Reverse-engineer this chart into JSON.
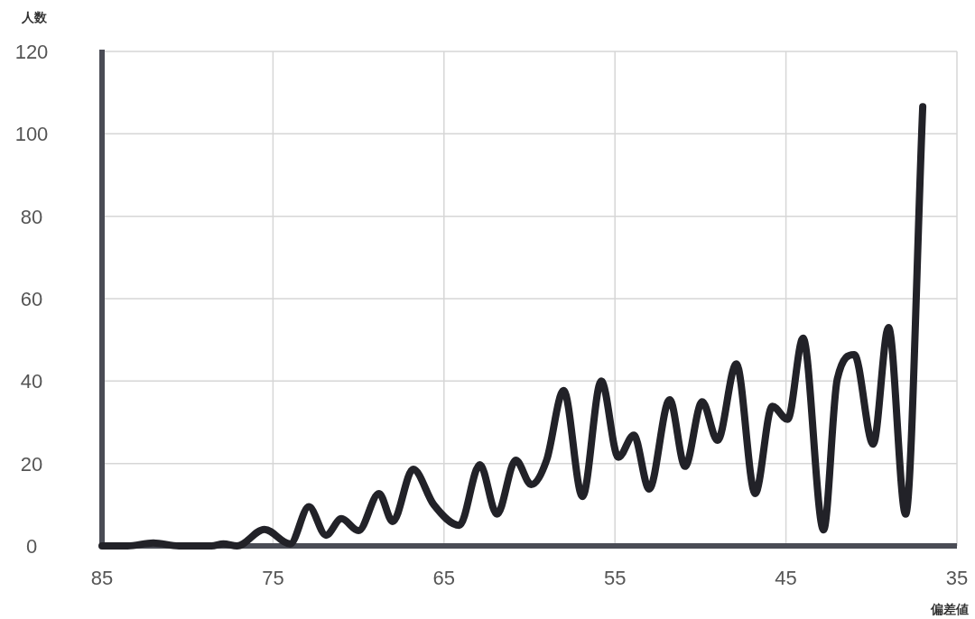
{
  "chart_data": {
    "type": "line",
    "xlabel": "偏差値",
    "ylabel": "人数",
    "x": [
      85,
      83.5,
      82,
      80.5,
      78.6,
      77.9,
      77.1,
      75.5,
      74,
      72.9,
      71.9,
      71,
      70,
      68.8,
      68,
      66.8,
      65.6,
      64.1,
      62.9,
      61.9,
      60.8,
      59.9,
      59,
      58,
      56.9,
      55.8,
      54.8,
      53.9,
      53,
      51.8,
      50.9,
      49.9,
      49,
      47.9,
      46.8,
      45.8,
      44.9,
      44,
      42.8,
      42,
      41,
      39.9,
      39,
      38,
      37
    ],
    "series": [
      {
        "color": "#222228",
        "values": [
          0,
          0,
          0.7,
          0,
          0,
          0.5,
          0,
          4,
          0.5,
          9.5,
          2.6,
          6.6,
          3.7,
          12.7,
          5.9,
          18.6,
          10,
          5,
          19.7,
          7.7,
          20.8,
          14.9,
          20.8,
          37.7,
          12,
          40,
          21.5,
          26.9,
          13.8,
          35.5,
          19.3,
          35,
          25.6,
          44.2,
          12.7,
          33.9,
          30.7,
          50.4,
          3.9,
          40.5,
          46.4,
          24.7,
          53,
          7.7,
          106.6
        ]
      }
    ],
    "xlim": [
      85,
      35
    ],
    "ylim": [
      0,
      120
    ],
    "xticks": [
      85,
      75,
      65,
      55,
      45,
      35
    ],
    "yticks": [
      0,
      20,
      40,
      60,
      80,
      100,
      120
    ],
    "grid": true
  }
}
